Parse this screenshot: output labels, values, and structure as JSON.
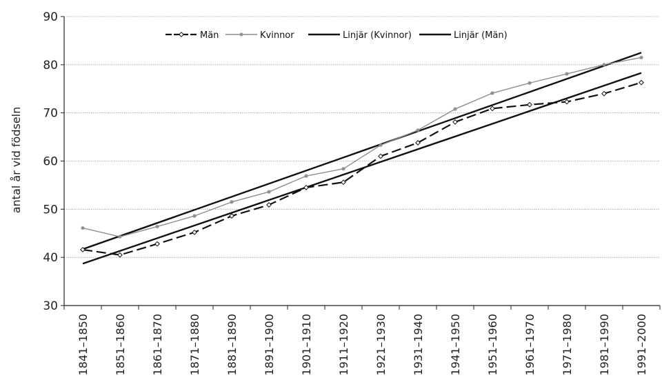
{
  "chart_data": {
    "type": "line",
    "title": "",
    "xlabel": "",
    "ylabel": "antal år vid födseln",
    "ylim": [
      30,
      90
    ],
    "yticks": [
      30,
      40,
      50,
      60,
      70,
      80,
      90
    ],
    "grid": true,
    "legend_position": "top-center",
    "categories": [
      "1841–1850",
      "1851–1860",
      "1861–1870",
      "1871–1880",
      "1881–1890",
      "1891–1900",
      "1901–1910",
      "1911–1920",
      "1921–1930",
      "1931–1940",
      "1941–1950",
      "1951–1960",
      "1961–1970",
      "1971–1980",
      "1981–1990",
      "1991–2000"
    ],
    "series": [
      {
        "name": "Män",
        "values": [
          41.6,
          40.5,
          42.8,
          45.2,
          48.6,
          50.9,
          54.5,
          55.6,
          61.0,
          63.8,
          68.1,
          70.9,
          71.7,
          72.3,
          74.0,
          76.3
        ],
        "style": "dashed",
        "marker": "diamond",
        "color": "#111111"
      },
      {
        "name": "Kvinnor",
        "values": [
          46.1,
          44.3,
          46.4,
          48.6,
          51.5,
          53.6,
          56.9,
          58.4,
          63.3,
          66.4,
          70.8,
          74.1,
          76.2,
          78.1,
          80.0,
          81.5
        ],
        "style": "solid",
        "marker": "star",
        "color": "#8c8c8c"
      },
      {
        "name": "Linjär (Kvinnor)",
        "values": [
          41.7,
          44.5,
          47.2,
          49.9,
          52.6,
          55.3,
          58.0,
          60.8,
          63.5,
          66.2,
          68.9,
          71.6,
          74.3,
          77.1,
          79.8,
          82.5
        ],
        "style": "solid",
        "marker": "none",
        "color": "#111111"
      },
      {
        "name": "Linjär (Män)",
        "values": [
          38.7,
          41.4,
          44.0,
          46.7,
          49.3,
          51.9,
          54.6,
          57.2,
          59.9,
          62.5,
          65.1,
          67.8,
          70.4,
          73.0,
          75.7,
          78.3
        ],
        "style": "solid",
        "marker": "none",
        "color": "#111111"
      }
    ]
  }
}
